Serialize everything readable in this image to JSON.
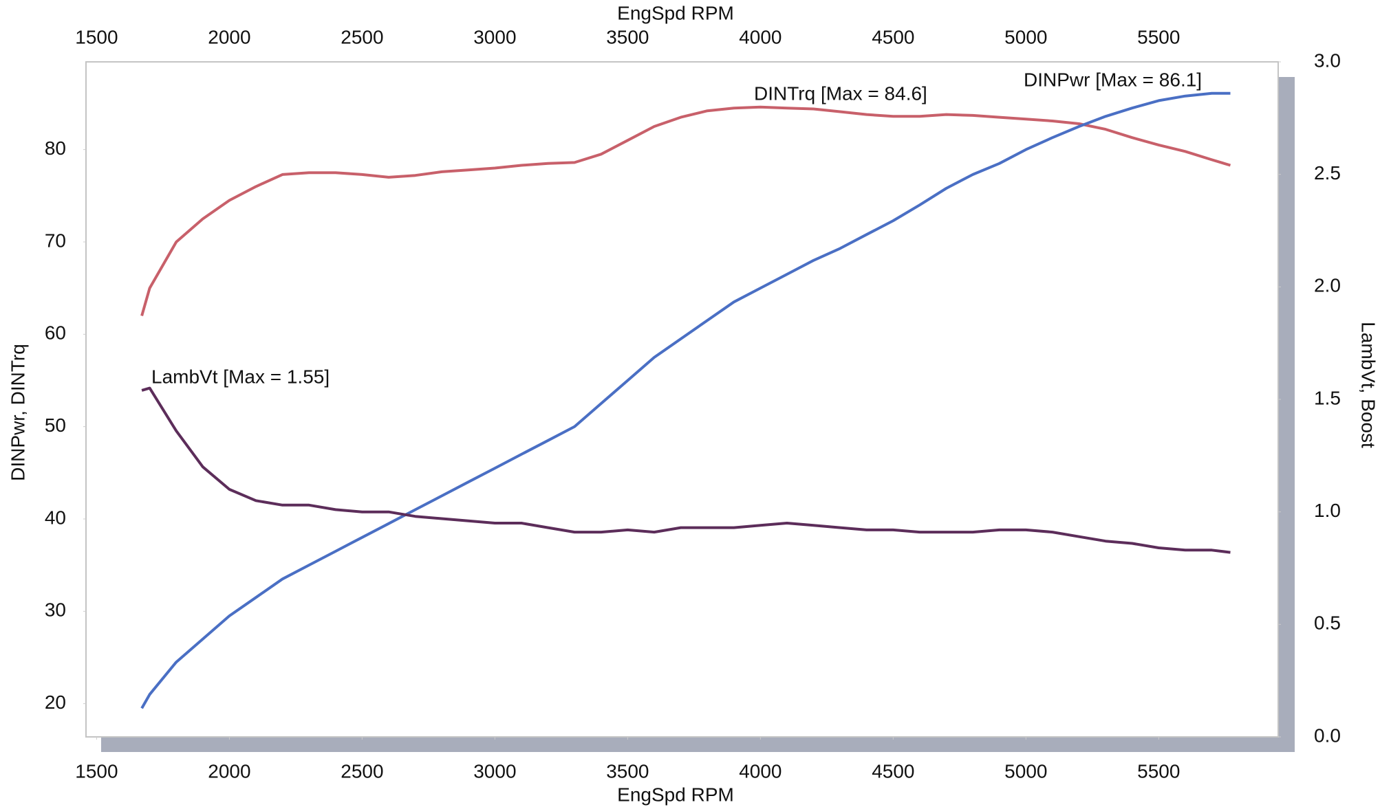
{
  "chart_data": {
    "type": "line",
    "xlabel": "EngSpd  RPM",
    "ylabel": "DINPwr, DINTrq",
    "y2label": "LambVt, Boost",
    "x": [
      1670,
      1700,
      1800,
      1900,
      2000,
      2100,
      2200,
      2300,
      2400,
      2500,
      2600,
      2700,
      2800,
      2900,
      3000,
      3100,
      3200,
      3300,
      3400,
      3500,
      3600,
      3700,
      3800,
      3900,
      4000,
      4100,
      4200,
      4300,
      4400,
      4500,
      4600,
      4700,
      4800,
      4900,
      5000,
      5100,
      5200,
      5300,
      5400,
      5500,
      5600,
      5700,
      5770
    ],
    "series": [
      {
        "name": "DINTrq",
        "label": "DINTrq [Max = 84.6]",
        "color": "#c8606a",
        "axis": "y",
        "values": [
          62,
          65,
          70,
          72.5,
          74.5,
          76,
          77.3,
          77.5,
          77.5,
          77.3,
          77,
          77.2,
          77.6,
          77.8,
          78,
          78.3,
          78.5,
          78.6,
          79.5,
          81,
          82.5,
          83.5,
          84.2,
          84.5,
          84.6,
          84.5,
          84.4,
          84.1,
          83.8,
          83.6,
          83.6,
          83.8,
          83.7,
          83.5,
          83.3,
          83.1,
          82.8,
          82.2,
          81.3,
          80.5,
          79.8,
          78.9,
          78.3
        ]
      },
      {
        "name": "DINPwr",
        "label": "DINPwr [Max = 86.1]",
        "color": "#4a6fc4",
        "axis": "y",
        "values": [
          19.5,
          21,
          24.5,
          27,
          29.5,
          31.5,
          33.5,
          35,
          36.5,
          38,
          39.5,
          41,
          42.5,
          44,
          45.5,
          47,
          48.5,
          50,
          52.5,
          55,
          57.5,
          59.5,
          61.5,
          63.5,
          65,
          66.5,
          68,
          69.3,
          70.8,
          72.3,
          74,
          75.8,
          77.3,
          78.5,
          80,
          81.3,
          82.5,
          83.6,
          84.5,
          85.3,
          85.8,
          86.1,
          86.1
        ]
      },
      {
        "name": "LambVt",
        "label": "LambVt [Max = 1.55]",
        "color": "#5c2d5a",
        "axis": "y2",
        "values": [
          1.54,
          1.55,
          1.36,
          1.2,
          1.1,
          1.05,
          1.03,
          1.03,
          1.01,
          1.0,
          1.0,
          0.98,
          0.97,
          0.96,
          0.95,
          0.95,
          0.93,
          0.91,
          0.91,
          0.92,
          0.91,
          0.93,
          0.93,
          0.93,
          0.94,
          0.95,
          0.94,
          0.93,
          0.92,
          0.92,
          0.91,
          0.91,
          0.91,
          0.92,
          0.92,
          0.91,
          0.89,
          0.87,
          0.86,
          0.84,
          0.83,
          0.83,
          0.82
        ]
      }
    ],
    "xlim": [
      1460,
      5950
    ],
    "xticks": [
      1500,
      2000,
      2500,
      3000,
      3500,
      4000,
      4500,
      5000,
      5500
    ],
    "ylim": [
      16.4,
      89.5
    ],
    "yticks": [
      20,
      30,
      40,
      50,
      60,
      70,
      80
    ],
    "y2lim": [
      0,
      3
    ],
    "y2ticks": [
      {
        "value": 0,
        "label": "0.0"
      },
      0.5,
      {
        "value": 1,
        "label": "1.0"
      },
      1.5,
      {
        "value": 2,
        "label": "2.0"
      },
      2.5,
      {
        "value": 3,
        "label": "3.0"
      }
    ],
    "grid": false
  }
}
